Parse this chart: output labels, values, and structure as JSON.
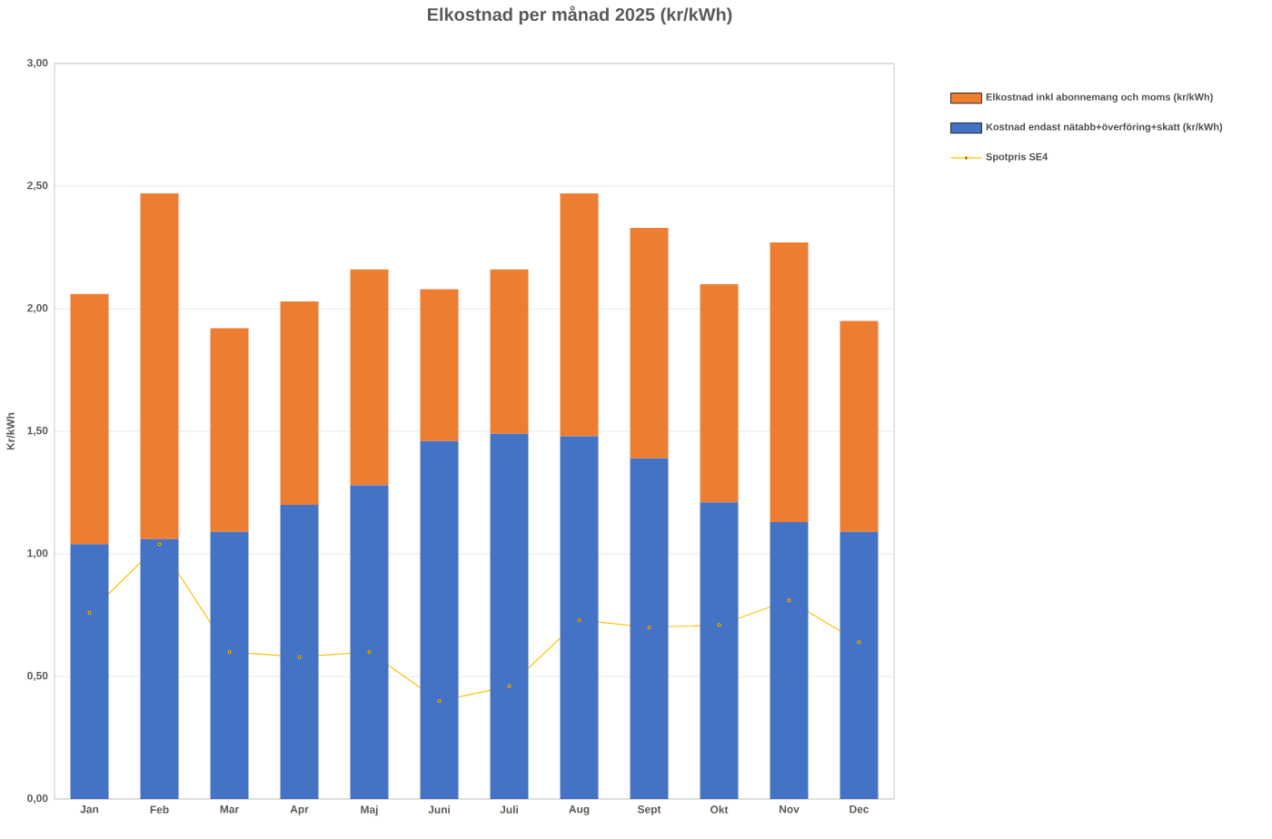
{
  "chart_data": {
    "type": "bar",
    "title": "Elkostnad per månad 2025 (kr/kWh)",
    "ylabel": "Kr/kWh",
    "categories": [
      "Jan",
      "Feb",
      "Mar",
      "Apr",
      "Maj",
      "Juni",
      "Juli",
      "Aug",
      "Sept",
      "Okt",
      "Nov",
      "Dec"
    ],
    "stacked": true,
    "series": [
      {
        "name": "Kostnad endast nätabb+överföring+skatt (kr/kWh)",
        "color": "#4472c4",
        "values": [
          1.04,
          1.06,
          1.09,
          1.2,
          1.28,
          1.46,
          1.49,
          1.48,
          1.39,
          1.21,
          1.13,
          1.09
        ]
      },
      {
        "name": "Elkostnad inkl abonnemang och moms (kr/kWh)",
        "color": "#ed7d31",
        "values": [
          1.02,
          1.41,
          0.83,
          0.83,
          0.88,
          0.62,
          0.67,
          0.99,
          0.94,
          0.89,
          1.14,
          0.86
        ]
      },
      {
        "name": "Spotpris SE4",
        "type": "line",
        "color": "#ffc000",
        "values": [
          0.76,
          1.04,
          0.6,
          0.58,
          0.6,
          0.4,
          0.46,
          0.73,
          0.7,
          0.71,
          0.81,
          0.64
        ]
      }
    ],
    "ylim": [
      0,
      3
    ],
    "yticks": [
      {
        "value": 0,
        "label": "0,00"
      },
      {
        "value": 0.5,
        "label": "0,50"
      },
      {
        "value": 1,
        "label": "1,00"
      },
      {
        "value": 1.5,
        "label": "1,50"
      },
      {
        "value": 2,
        "label": "2,00"
      },
      {
        "value": 2.5,
        "label": "2,50"
      },
      {
        "value": 3,
        "label": "3,00"
      }
    ],
    "grid": "y",
    "legend": "right",
    "marker": "circle"
  }
}
